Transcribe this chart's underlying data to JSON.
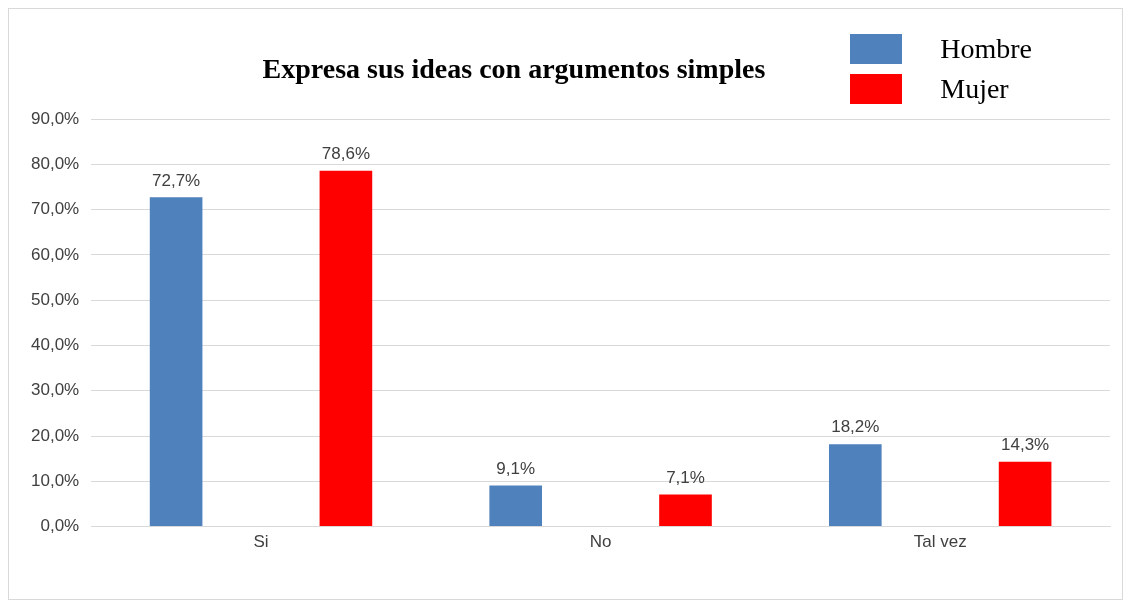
{
  "chart_data": {
    "type": "bar",
    "title": "Expresa sus ideas con argumentos simples",
    "categories": [
      "Si",
      "No",
      "Tal vez"
    ],
    "series": [
      {
        "name": "Hombre",
        "color": "#4f81bd",
        "values": [
          72.7,
          9.1,
          18.2
        ],
        "value_labels": [
          "72,7%",
          "9,1%",
          "18,2%"
        ]
      },
      {
        "name": "Mujer",
        "color": "#ff0000",
        "values": [
          78.6,
          7.1,
          14.3
        ],
        "value_labels": [
          "78,6%",
          "7,1%",
          "14,3%"
        ]
      }
    ],
    "ylim": [
      0,
      90
    ],
    "yticks": [
      {
        "value": 0,
        "label": "0,0%"
      },
      {
        "value": 10,
        "label": "10,0%"
      },
      {
        "value": 20,
        "label": "20,0%"
      },
      {
        "value": 30,
        "label": "30,0%"
      },
      {
        "value": 40,
        "label": "40,0%"
      },
      {
        "value": 50,
        "label": "50,0%"
      },
      {
        "value": 60,
        "label": "60,0%"
      },
      {
        "value": 70,
        "label": "70,0%"
      },
      {
        "value": 80,
        "label": "80,0%"
      },
      {
        "value": 90,
        "label": "90,0%"
      }
    ],
    "grid": "y",
    "legend": "top right"
  }
}
